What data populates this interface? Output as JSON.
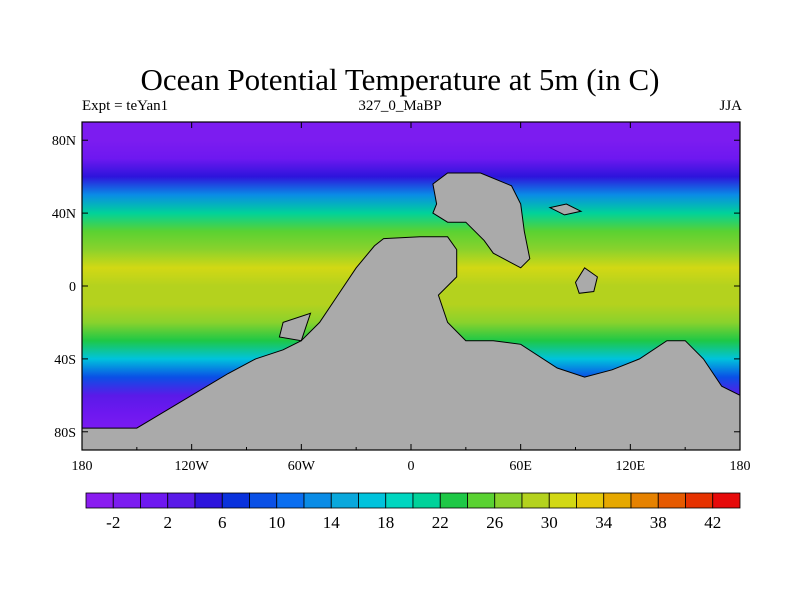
{
  "chart_data": {
    "type": "heatmap",
    "title": "Ocean Potential Temperature at 5m (in C)",
    "subtitle_left": "Expt = teYan1",
    "subtitle_center": "327_0_MaBP",
    "subtitle_right": "JJA",
    "variable": "Ocean potential temperature at 5m",
    "units": "C",
    "x_range": [
      -180,
      180
    ],
    "y_range": [
      -90,
      90
    ],
    "x_ticks": [
      {
        "value": -180,
        "label": "180"
      },
      {
        "value": -120,
        "label": "120W"
      },
      {
        "value": -60,
        "label": "60W"
      },
      {
        "value": 0,
        "label": "0"
      },
      {
        "value": 60,
        "label": "60E"
      },
      {
        "value": 120,
        "label": "120E"
      },
      {
        "value": 180,
        "label": "180"
      }
    ],
    "y_ticks": [
      {
        "value": 80,
        "label": "80N"
      },
      {
        "value": 40,
        "label": "40N"
      },
      {
        "value": 0,
        "label": "0"
      },
      {
        "value": -40,
        "label": "40S"
      },
      {
        "value": -80,
        "label": "80S"
      }
    ],
    "colorbar": {
      "levels": [
        -4,
        -2,
        0,
        2,
        4,
        6,
        8,
        10,
        12,
        14,
        16,
        18,
        20,
        22,
        24,
        26,
        28,
        30,
        32,
        34,
        36,
        38,
        40,
        42,
        44
      ],
      "labels": [
        "-2",
        "2",
        "6",
        "10",
        "14",
        "18",
        "22",
        "26",
        "30",
        "34",
        "38",
        "42"
      ],
      "colors": [
        "#8a1cf0",
        "#7c1cf0",
        "#6e18f0",
        "#5a1ae8",
        "#2d14dc",
        "#0a32dc",
        "#0a50e6",
        "#0a6ef0",
        "#0a8ce6",
        "#0aa8dc",
        "#00c3dc",
        "#00d6c0",
        "#00d29a",
        "#1ec846",
        "#5ad232",
        "#8ad22c",
        "#b4d21e",
        "#d2d814",
        "#e6c80a",
        "#e6a800",
        "#e68200",
        "#e65a00",
        "#e63200",
        "#e60a0a"
      ]
    },
    "land_color": "#aaaaaa",
    "zonal_mean_profile": [
      {
        "lat": 90,
        "value": -2
      },
      {
        "lat": 80,
        "value": -1.5
      },
      {
        "lat": 70,
        "value": 0
      },
      {
        "lat": 60,
        "value": 4
      },
      {
        "lat": 50,
        "value": 12
      },
      {
        "lat": 40,
        "value": 20
      },
      {
        "lat": 30,
        "value": 24
      },
      {
        "lat": 20,
        "value": 27
      },
      {
        "lat": 10,
        "value": 30
      },
      {
        "lat": 0,
        "value": 29
      },
      {
        "lat": -10,
        "value": 28
      },
      {
        "lat": -20,
        "value": 27
      },
      {
        "lat": -30,
        "value": 22
      },
      {
        "lat": -40,
        "value": 16
      },
      {
        "lat": -50,
        "value": 8
      },
      {
        "lat": -60,
        "value": 2
      },
      {
        "lat": -70,
        "value": 0
      },
      {
        "lat": -80,
        "value": -1
      },
      {
        "lat": -90,
        "value": -2
      }
    ],
    "land_masses": [
      {
        "name": "pangaea-main",
        "outline": [
          [
            -60,
            -30
          ],
          [
            -50,
            -20
          ],
          [
            -40,
            -5
          ],
          [
            -30,
            10
          ],
          [
            -20,
            22
          ],
          [
            -15,
            26
          ],
          [
            5,
            27
          ],
          [
            20,
            27
          ],
          [
            25,
            20
          ],
          [
            25,
            5
          ],
          [
            15,
            -5
          ],
          [
            20,
            -20
          ],
          [
            30,
            -30
          ],
          [
            45,
            -30
          ],
          [
            60,
            -32
          ],
          [
            80,
            -45
          ],
          [
            95,
            -50
          ],
          [
            110,
            -46
          ],
          [
            125,
            -40
          ],
          [
            140,
            -30
          ],
          [
            150,
            -30
          ],
          [
            160,
            -40
          ],
          [
            170,
            -55
          ],
          [
            180,
            -60
          ],
          [
            180,
            -90
          ],
          [
            -180,
            -90
          ],
          [
            -180,
            -78
          ],
          [
            -150,
            -78
          ],
          [
            -140,
            -72
          ],
          [
            -120,
            -60
          ],
          [
            -100,
            -48
          ],
          [
            -85,
            -40
          ],
          [
            -70,
            -35
          ]
        ]
      },
      {
        "name": "northern-block",
        "outline": [
          [
            12,
            56
          ],
          [
            20,
            62
          ],
          [
            38,
            62
          ],
          [
            55,
            55
          ],
          [
            60,
            45
          ],
          [
            62,
            30
          ],
          [
            65,
            15
          ],
          [
            60,
            10
          ],
          [
            45,
            18
          ],
          [
            40,
            25
          ],
          [
            30,
            35
          ],
          [
            20,
            35
          ],
          [
            12,
            40
          ],
          [
            14,
            45
          ]
        ]
      },
      {
        "name": "western-peninsula",
        "outline": [
          [
            -70,
            -20
          ],
          [
            -55,
            -15
          ],
          [
            -60,
            -30
          ],
          [
            -72,
            -28
          ]
        ]
      },
      {
        "name": "east-shelf",
        "outline": [
          [
            90,
            2
          ],
          [
            95,
            10
          ],
          [
            102,
            5
          ],
          [
            100,
            -3
          ],
          [
            92,
            -4
          ]
        ]
      },
      {
        "name": "northeast-island",
        "outline": [
          [
            76,
            43
          ],
          [
            85,
            45
          ],
          [
            93,
            41
          ],
          [
            84,
            39
          ]
        ]
      }
    ]
  }
}
